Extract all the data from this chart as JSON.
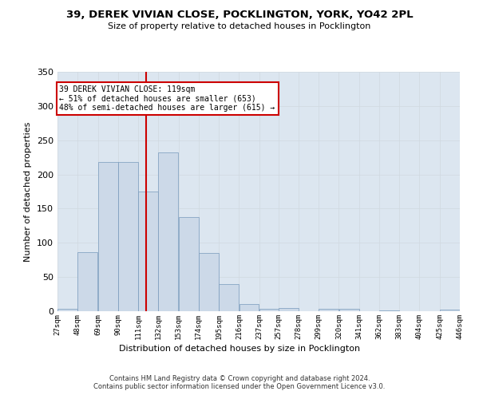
{
  "title": "39, DEREK VIVIAN CLOSE, POCKLINGTON, YORK, YO42 2PL",
  "subtitle": "Size of property relative to detached houses in Pocklington",
  "xlabel": "Distribution of detached houses by size in Pocklington",
  "ylabel": "Number of detached properties",
  "bar_color": "#ccd9e8",
  "bar_edge_color": "#7799bb",
  "grid_color": "#d0d8e0",
  "bg_color": "#dce6f0",
  "vline_value": 119,
  "vline_color": "#cc0000",
  "bin_edges": [
    27,
    48,
    69,
    90,
    111,
    132,
    153,
    174,
    195,
    216,
    237,
    257,
    278,
    299,
    320,
    341,
    362,
    383,
    404,
    425,
    446
  ],
  "bar_heights": [
    3,
    86,
    218,
    218,
    175,
    232,
    138,
    85,
    40,
    10,
    3,
    5,
    0,
    3,
    3,
    0,
    1,
    0,
    0,
    2
  ],
  "annotation_line1": "39 DEREK VIVIAN CLOSE: 119sqm",
  "annotation_line2": "← 51% of detached houses are smaller (653)",
  "annotation_line3": "48% of semi-detached houses are larger (615) →",
  "annotation_box_color": "#ffffff",
  "annotation_box_edge_color": "#cc0000",
  "footer_line1": "Contains HM Land Registry data © Crown copyright and database right 2024.",
  "footer_line2": "Contains public sector information licensed under the Open Government Licence v3.0.",
  "ylim": [
    0,
    350
  ],
  "yticks": [
    0,
    50,
    100,
    150,
    200,
    250,
    300,
    350
  ],
  "tick_labels": [
    "27sqm",
    "48sqm",
    "69sqm",
    "90sqm",
    "111sqm",
    "132sqm",
    "153sqm",
    "174sqm",
    "195sqm",
    "216sqm",
    "237sqm",
    "257sqm",
    "278sqm",
    "299sqm",
    "320sqm",
    "341sqm",
    "362sqm",
    "383sqm",
    "404sqm",
    "425sqm",
    "446sqm"
  ]
}
